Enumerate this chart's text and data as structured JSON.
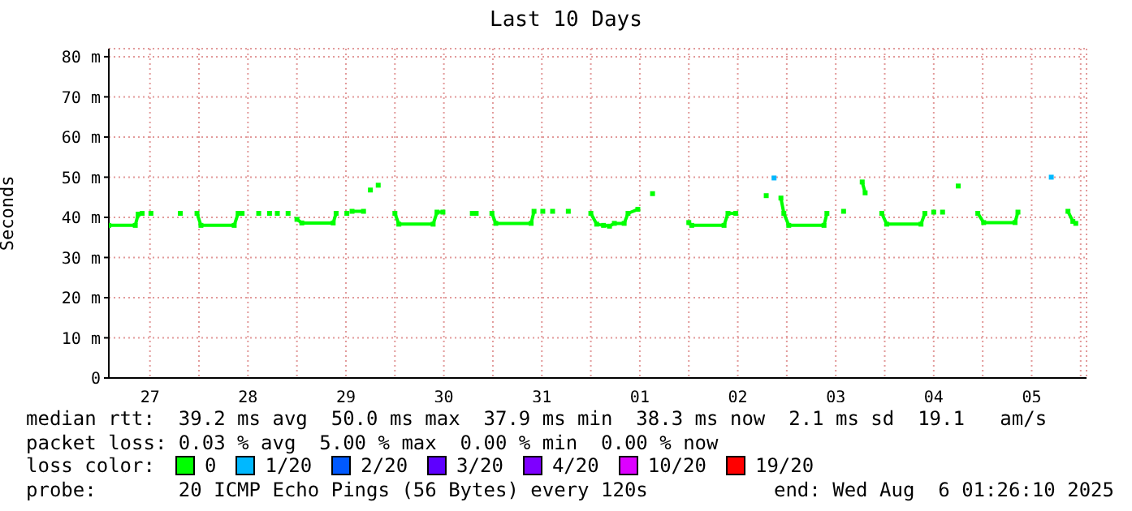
{
  "chart_data": {
    "type": "line",
    "title": "Last 10 Days",
    "ylabel": "Seconds",
    "legend_title": "loss color:",
    "legend": "bottom",
    "grid": true,
    "marker": "square",
    "line_style": "solid",
    "xlim": [
      "2025-07-27T01:55",
      "2025-08-06T01:26"
    ],
    "xticks": [
      {
        "value": "2025-07-27T12:00",
        "label": "27"
      },
      {
        "value": "2025-07-28T00:00",
        "label": null
      },
      {
        "value": "2025-07-28T12:00",
        "label": "28"
      },
      {
        "value": "2025-07-29T00:00",
        "label": null
      },
      {
        "value": "2025-07-29T12:00",
        "label": "29"
      },
      {
        "value": "2025-07-30T00:00",
        "label": null
      },
      {
        "value": "2025-07-30T12:00",
        "label": "30"
      },
      {
        "value": "2025-07-31T00:00",
        "label": null
      },
      {
        "value": "2025-07-31T12:00",
        "label": "31"
      },
      {
        "value": "2025-08-01T00:00",
        "label": null
      },
      {
        "value": "2025-08-01T12:00",
        "label": "01"
      },
      {
        "value": "2025-08-02T00:00",
        "label": null
      },
      {
        "value": "2025-08-02T12:00",
        "label": "02"
      },
      {
        "value": "2025-08-03T00:00",
        "label": null
      },
      {
        "value": "2025-08-03T12:00",
        "label": "03"
      },
      {
        "value": "2025-08-04T00:00",
        "label": null
      },
      {
        "value": "2025-08-04T12:00",
        "label": "04"
      },
      {
        "value": "2025-08-05T00:00",
        "label": null
      },
      {
        "value": "2025-08-05T12:00",
        "label": "05"
      },
      {
        "value": "2025-08-06T00:00",
        "label": null
      }
    ],
    "ylim": [
      0,
      82
    ],
    "yticks": [
      0,
      {
        "value": 10,
        "label": "10 m"
      },
      {
        "value": 20,
        "label": "20 m"
      },
      {
        "value": 30,
        "label": "30 m"
      },
      {
        "value": 40,
        "label": "40 m"
      },
      {
        "value": 50,
        "label": "50 m"
      },
      {
        "value": 60,
        "label": "60 m"
      },
      {
        "value": 70,
        "label": "70 m"
      },
      {
        "value": 80,
        "label": "80 m"
      }
    ],
    "series": [
      {
        "name": "0",
        "color": "#00ff00",
        "x": [
          "2025-07-27T01:55",
          "2025-07-27T08:24",
          "2025-07-27T09:07",
          "2025-07-27T10:05",
          "2025-07-27T10:48",
          "2025-07-27T12:14",
          "2025-07-27T12:43",
          "2025-07-27T19:26",
          "2025-07-27T19:55",
          "2025-07-27T23:31",
          "2025-07-28T00:29",
          "2025-07-28T08:38",
          "2025-07-28T09:36",
          "2025-07-28T10:34",
          "2025-07-28T11:02",
          "2025-07-28T14:38",
          "2025-07-28T15:07",
          "2025-07-28T17:17",
          "2025-07-28T17:46",
          "2025-07-28T19:12",
          "2025-07-28T19:41",
          "2025-07-28T21:50",
          "2025-07-28T22:19",
          "2025-07-29T00:00",
          "2025-07-29T01:12",
          "2025-07-29T08:53",
          "2025-07-29T09:36",
          "2025-07-29T10:48",
          "2025-07-29T12:14",
          "2025-07-29T12:43",
          "2025-07-29T13:30",
          "2025-07-29T16:19",
          "2025-07-29T16:48",
          "2025-07-29T18:00",
          "2025-07-29T18:29",
          "2025-07-29T19:55",
          "2025-07-29T20:24",
          "2025-07-30T00:00",
          "2025-07-30T00:58",
          "2025-07-30T09:22",
          "2025-07-30T10:19",
          "2025-07-30T11:46",
          "2025-07-30T12:14",
          "2025-07-30T18:58",
          "2025-07-30T19:26",
          "2025-07-30T19:55",
          "2025-07-30T20:24",
          "2025-07-30T23:46",
          "2025-07-31T00:43",
          "2025-07-31T09:22",
          "2025-07-31T10:05",
          "2025-07-31T10:48",
          "2025-07-31T12:14",
          "2025-07-31T12:43",
          "2025-07-31T14:38",
          "2025-07-31T15:07",
          "2025-07-31T18:29",
          "2025-07-31T18:58",
          "2025-08-01T00:00",
          "2025-08-01T01:26",
          "2025-08-01T03:07",
          "2025-08-01T04:34",
          "2025-08-01T05:46",
          "2025-08-01T08:10",
          "2025-08-01T09:07",
          "2025-08-01T11:31",
          "2025-08-01T12:00",
          "2025-08-01T15:07",
          "2025-08-01T15:36",
          "2025-08-02T00:00",
          "2025-08-02T00:43",
          "2025-08-02T08:38",
          "2025-08-02T09:36",
          "2025-08-02T11:31",
          "2025-08-02T12:00",
          "2025-08-02T18:58",
          "2025-08-02T19:26",
          "2025-08-02T22:34",
          "2025-08-02T23:17",
          "2025-08-03T00:29",
          "2025-08-03T09:07",
          "2025-08-03T09:50",
          "2025-08-03T10:19",
          "2025-08-03T13:55",
          "2025-08-03T14:24",
          "2025-08-03T18:29",
          "2025-08-03T19:12",
          "2025-08-03T19:41",
          "2025-08-03T23:17",
          "2025-08-04T00:29",
          "2025-08-04T08:53",
          "2025-08-04T09:50",
          "2025-08-04T10:19",
          "2025-08-04T12:00",
          "2025-08-04T12:29",
          "2025-08-04T14:10",
          "2025-08-04T14:38",
          "2025-08-04T18:00",
          "2025-08-04T18:29",
          "2025-08-04T22:48",
          "2025-08-05T00:14",
          "2025-08-05T07:55",
          "2025-08-05T08:38",
          "2025-08-05T09:07",
          "2025-08-05T20:53",
          "2025-08-05T22:05",
          "2025-08-05T22:48"
        ],
        "values": [
          38,
          38,
          40.8,
          41,
          null,
          41,
          null,
          41,
          null,
          41,
          38,
          38,
          41,
          41,
          null,
          41,
          null,
          41,
          null,
          41,
          null,
          41,
          null,
          39.5,
          38.6,
          38.6,
          41,
          null,
          41,
          null,
          41.5,
          41.5,
          null,
          46.8,
          null,
          48,
          null,
          41,
          38.3,
          38.3,
          41.3,
          41.3,
          null,
          41,
          null,
          41,
          null,
          41,
          38.5,
          38.5,
          41.5,
          null,
          41.5,
          null,
          41.5,
          null,
          41.5,
          null,
          41,
          38.3,
          38,
          37.8,
          38.5,
          38.5,
          41,
          42,
          null,
          45.9,
          null,
          38.7,
          38,
          38,
          41,
          41,
          null,
          45.4,
          null,
          44.8,
          41,
          38,
          38,
          41,
          null,
          41.5,
          null,
          48.8,
          46.1,
          null,
          41,
          38.3,
          38.3,
          41,
          null,
          41.3,
          null,
          41.3,
          null,
          47.8,
          null,
          41,
          38.7,
          38.7,
          41.3,
          null,
          41.5,
          39,
          38.5
        ]
      },
      {
        "name": "1/20",
        "color": "#00b8ff",
        "type": "scatter",
        "x": [
          "2025-08-02T20:53",
          "2025-08-05T16:48"
        ],
        "values": [
          49.8,
          50
        ]
      },
      {
        "name": "2/20",
        "color": "#0059ff"
      },
      {
        "name": "3/20",
        "color": "#5e00ff"
      },
      {
        "name": "4/20",
        "color": "#7e00ff"
      },
      {
        "name": "10/20",
        "color": "#dd00ff"
      },
      {
        "name": "19/20",
        "color": "#ff0000"
      }
    ],
    "annotations": [
      "median rtt:  39.2 ms avg  50.0 ms max  37.9 ms min  38.3 ms now  2.1 ms sd  19.1   am/s",
      "packet loss: 0.03 % avg  5.00 % max  0.00 % min  0.00 % now",
      "probe:       20 ICMP Echo Pings (56 Bytes) every 120s",
      "end: Wed Aug  6 01:26:10 2025"
    ]
  }
}
